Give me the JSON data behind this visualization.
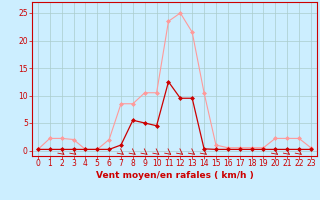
{
  "title": "",
  "xlabel": "Vent moyen/en rafales ( km/h )",
  "ylabel": "",
  "bg_color": "#cceeff",
  "grid_color": "#aacccc",
  "xlim": [
    -0.5,
    23.5
  ],
  "ylim": [
    -1,
    27
  ],
  "yticks": [
    0,
    5,
    10,
    15,
    20,
    25
  ],
  "xticks": [
    0,
    1,
    2,
    3,
    4,
    5,
    6,
    7,
    8,
    9,
    10,
    11,
    12,
    13,
    14,
    15,
    16,
    17,
    18,
    19,
    20,
    21,
    22,
    23
  ],
  "line1_color": "#ff9999",
  "line2_color": "#cc0000",
  "line1_x": [
    0,
    1,
    2,
    3,
    4,
    5,
    6,
    7,
    8,
    9,
    10,
    11,
    12,
    13,
    14,
    15,
    16,
    17,
    18,
    19,
    20,
    21,
    22,
    23
  ],
  "line1_y": [
    0.2,
    2.2,
    2.2,
    2.0,
    0.2,
    0.2,
    2.0,
    8.5,
    8.5,
    10.5,
    10.5,
    23.5,
    25.0,
    21.5,
    10.5,
    1.0,
    0.5,
    0.5,
    0.5,
    0.5,
    2.2,
    2.2,
    2.2,
    0.5
  ],
  "line2_x": [
    0,
    1,
    2,
    3,
    4,
    5,
    6,
    7,
    8,
    9,
    10,
    11,
    12,
    13,
    14,
    15,
    16,
    17,
    18,
    19,
    20,
    21,
    22,
    23
  ],
  "line2_y": [
    0.2,
    0.2,
    0.2,
    0.2,
    0.2,
    0.2,
    0.2,
    1.0,
    5.5,
    5.0,
    4.5,
    12.5,
    9.5,
    9.5,
    0.3,
    0.2,
    0.2,
    0.2,
    0.2,
    0.2,
    0.2,
    0.2,
    0.2,
    0.2
  ],
  "marker": "D",
  "markersize": 2,
  "linewidth1": 0.8,
  "linewidth2": 0.9,
  "tick_fontsize": 5.5,
  "xlabel_fontsize": 6.5
}
